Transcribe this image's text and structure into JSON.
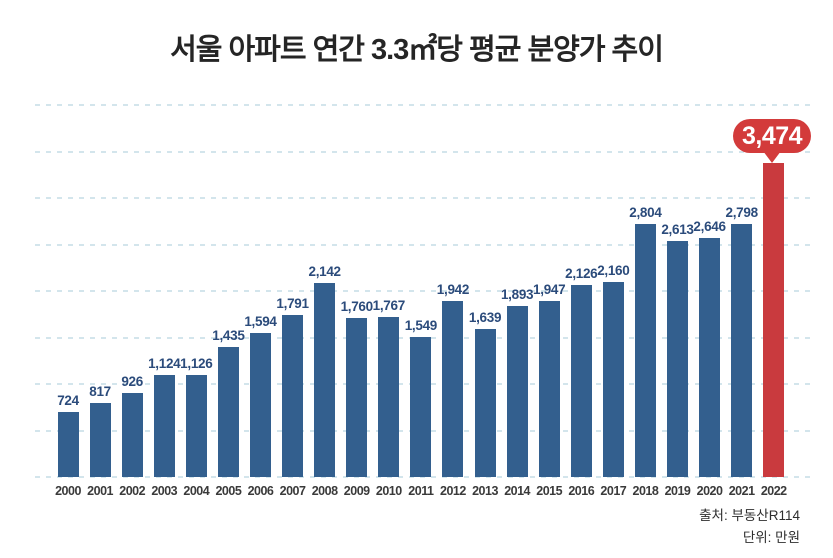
{
  "title": "서울 아파트 연간 3.3㎡당 평균 분양가 추이",
  "footer": {
    "source_line": "출처: 부동산R114",
    "unit_line": "단위: 만원"
  },
  "badge": {
    "label": "3,474"
  },
  "colors": {
    "bar": "#335f8e",
    "highlight_bar": "#c93a3e",
    "badge_background": "#d33b3b",
    "value_label": "#2b4b7b",
    "gridline": "#d3e5ec",
    "axis_label": "#3a3a3a",
    "title": "#252525"
  },
  "chart_data": {
    "type": "bar",
    "title": "서울 아파트 연간 3.3㎡당 평균 분양가 추이",
    "categories": [
      "2000",
      "2001",
      "2002",
      "2003",
      "2004",
      "2005",
      "2006",
      "2007",
      "2008",
      "2009",
      "2010",
      "2011",
      "2012",
      "2013",
      "2014",
      "2015",
      "2016",
      "2017",
      "2018",
      "2019",
      "2020",
      "2021",
      "2022"
    ],
    "values": [
      724,
      817,
      926,
      1124,
      1126,
      1435,
      1594,
      1791,
      2142,
      1760,
      1767,
      1549,
      1942,
      1639,
      1893,
      1947,
      2126,
      2160,
      2804,
      2613,
      2646,
      2798,
      3474
    ],
    "value_labels": [
      "724",
      "817",
      "926",
      "1,124",
      "1,126",
      "1,435",
      "1,594",
      "1,791",
      "2,142",
      "1,760",
      "1,767",
      "1,549",
      "1,942",
      "1,639",
      "1,893",
      "1,947",
      "2,126",
      "2,160",
      "2,804",
      "2,613",
      "2,646",
      "2,798",
      "3,474"
    ],
    "highlight_index": 22,
    "unit": "만원",
    "source": "부동산R114",
    "xlabel": "",
    "ylabel": "",
    "ylim": [
      0,
      4000
    ],
    "grid_step": 500,
    "grid_style": "dashed horizontal",
    "legend": "none"
  }
}
